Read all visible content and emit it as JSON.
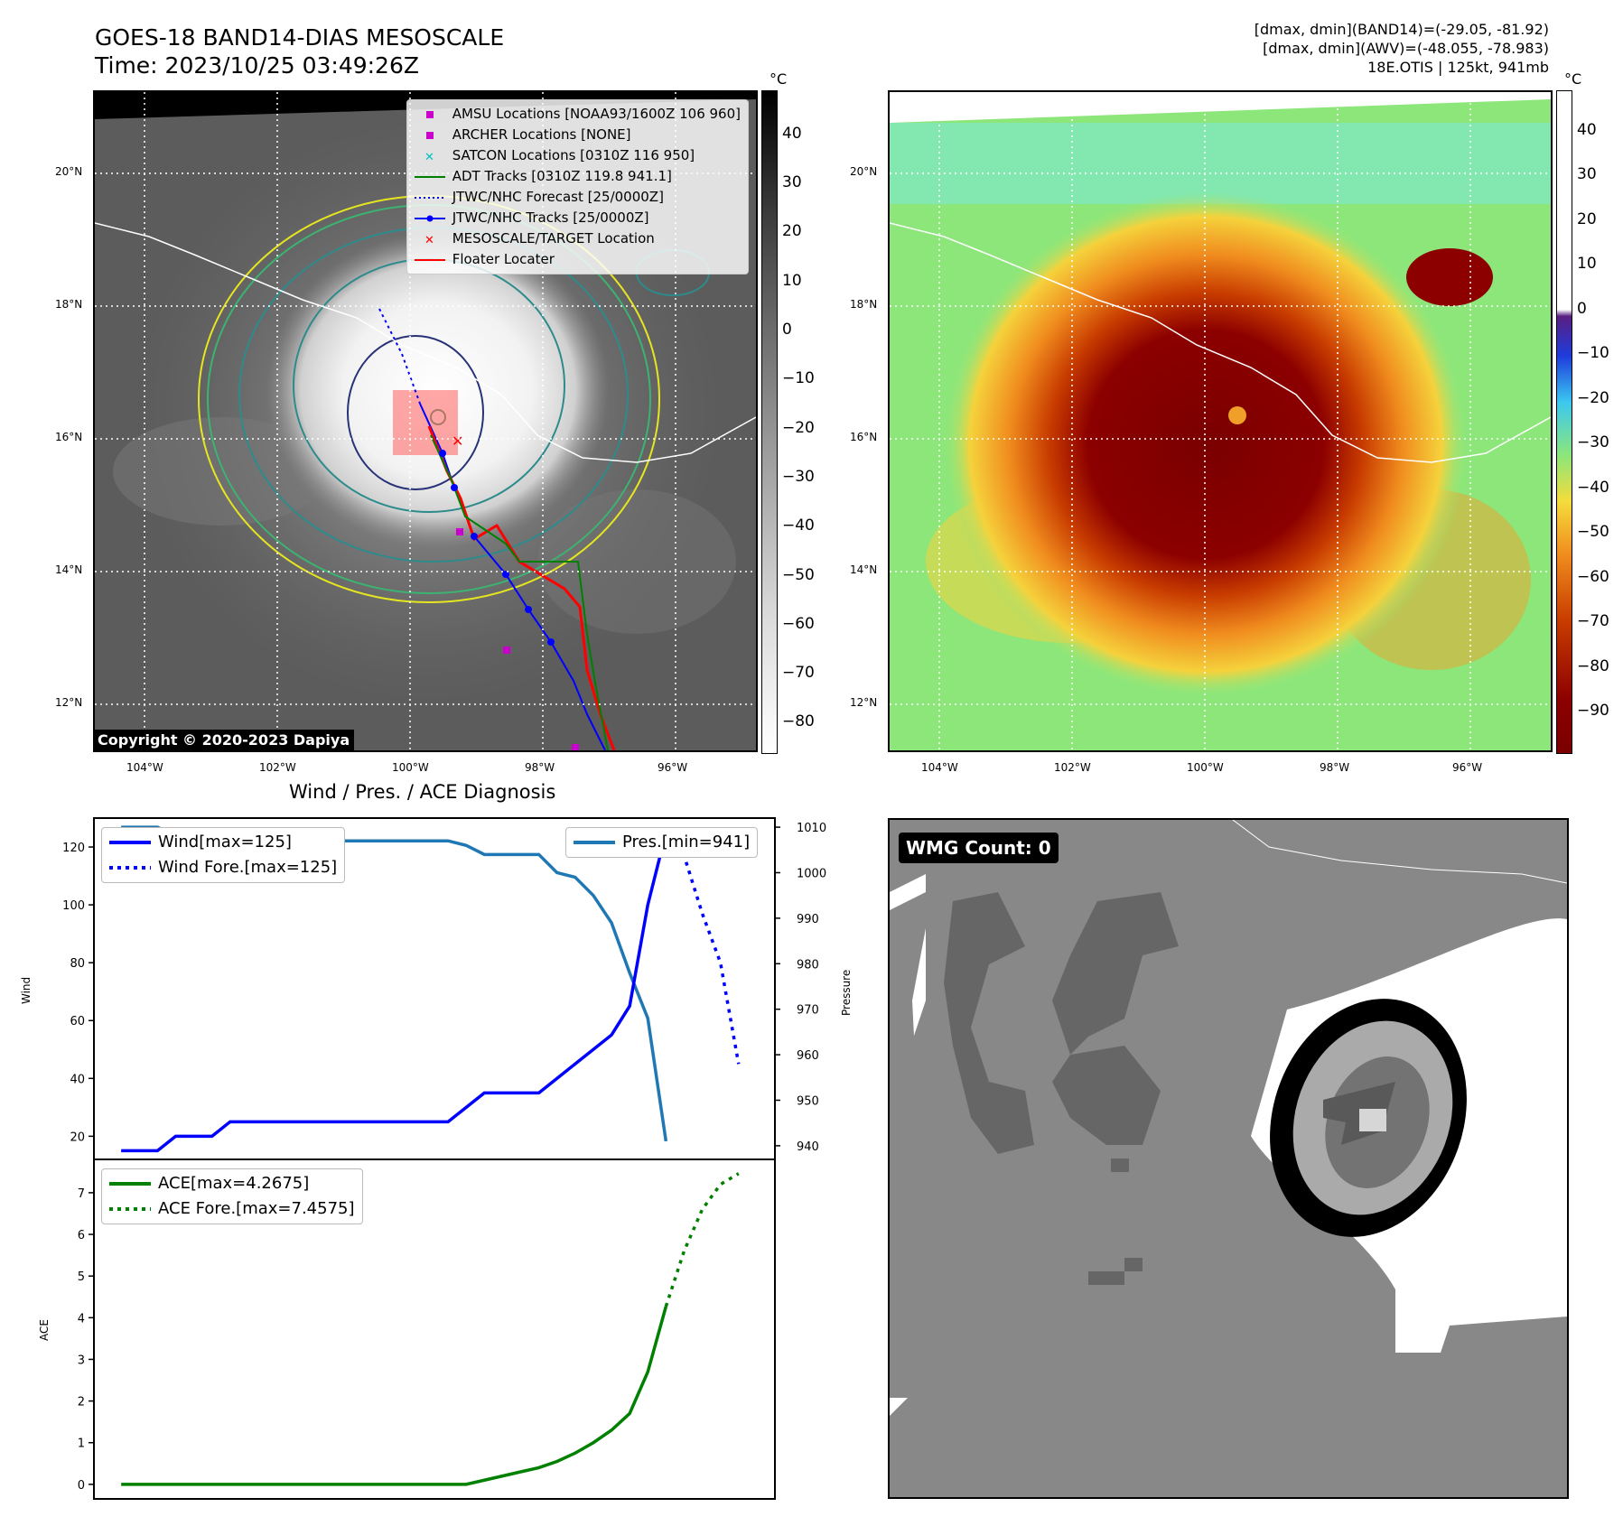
{
  "header": {
    "title_line1": "GOES-18 BAND14-DIAS MESOSCALE",
    "title_line2": "Time: 2023/10/25 03:49:26Z",
    "info_line1": "[dmax, dmin](BAND14)=(-29.05, -81.92)",
    "info_line2": "[dmax, dmin](AWV)=(-48.055, -78.983)",
    "info_line3": "18E.OTIS | 125kt, 941mb"
  },
  "map": {
    "lat_labels": [
      "20°N",
      "18°N",
      "16°N",
      "14°N",
      "12°N"
    ],
    "lon_labels": [
      "104°W",
      "102°W",
      "100°W",
      "98°W",
      "96°W"
    ],
    "copyright": "Copyright © 2020-2023 Dapiya",
    "legend": [
      {
        "label": "AMSU Locations [NOAA93/1600Z 106 960]",
        "symbol": "square",
        "color": "#cc00cc"
      },
      {
        "label": "ARCHER Locations [NONE]",
        "symbol": "square",
        "color": "#cc00cc"
      },
      {
        "label": "SATCON Locations [0310Z 116 950]",
        "symbol": "x",
        "color": "#00bfbf"
      },
      {
        "label": "ADT Tracks [0310Z 119.8 941.1]",
        "symbol": "line",
        "color": "#008000"
      },
      {
        "label": "JTWC/NHC Forecast [25/0000Z]",
        "symbol": "dotted",
        "color": "#0000ff"
      },
      {
        "label": "JTWC/NHC Tracks [25/0000Z]",
        "symbol": "line-dot",
        "color": "#0000ff"
      },
      {
        "label": "MESOSCALE/TARGET Location",
        "symbol": "x",
        "color": "#ff0000"
      },
      {
        "label": "Floater Locater",
        "symbol": "line",
        "color": "#ff0000"
      }
    ]
  },
  "colorbars": {
    "unit": "°C",
    "left_ticks": [
      "40",
      "30",
      "20",
      "10",
      "0",
      "−10",
      "−20",
      "−30",
      "−40",
      "−50",
      "−60",
      "−70",
      "−80"
    ],
    "right_ticks": [
      "40",
      "30",
      "20",
      "10",
      "0",
      "−10",
      "−20",
      "−30",
      "−40",
      "−50",
      "−60",
      "−70",
      "−80",
      "−90"
    ]
  },
  "diag": {
    "title": "Wind / Pres. / ACE Diagnosis",
    "wind_ylabel": "Wind",
    "pres_ylabel": "Pressure",
    "ace_ylabel": "ACE",
    "wind_legend": [
      "Wind[max=125]",
      "Wind Fore.[max=125]"
    ],
    "pres_legend": "Pres.[min=941]",
    "ace_legend": [
      "ACE[max=4.2675]",
      "ACE Fore.[max=7.4575]"
    ],
    "wind_ticks": [
      "120",
      "100",
      "80",
      "60",
      "40",
      "20"
    ],
    "pres_ticks": [
      "1010",
      "1000",
      "990",
      "980",
      "970",
      "960",
      "950",
      "940"
    ],
    "ace_ticks": [
      "7",
      "6",
      "5",
      "4",
      "3",
      "2",
      "1",
      "0"
    ],
    "colors": {
      "wind": "#0000ff",
      "pres": "#1f77b4",
      "ace": "#008000"
    }
  },
  "wmg": {
    "badge": "WMG Count: 0"
  },
  "chart_data": [
    {
      "type": "line",
      "title": "Wind / Pres. / ACE Diagnosis",
      "ylabel": "Wind",
      "ylim": [
        12,
        130
      ],
      "series": [
        {
          "name": "Wind[max=125]",
          "x": [
            0,
            2,
            3,
            5,
            6,
            8,
            10,
            12,
            14,
            16,
            18,
            19,
            20,
            21,
            23,
            25,
            27,
            28,
            29,
            30
          ],
          "values": [
            15,
            15,
            20,
            20,
            25,
            25,
            25,
            25,
            25,
            25,
            25,
            30,
            35,
            35,
            35,
            45,
            55,
            65,
            100,
            125
          ]
        },
        {
          "name": "Wind Fore.[max=125]",
          "x": [
            30,
            31,
            32,
            33,
            34
          ],
          "values": [
            125,
            117,
            97,
            80,
            45
          ]
        }
      ]
    },
    {
      "type": "line",
      "ylabel": "Pressure",
      "ylim": [
        937,
        1012
      ],
      "series": [
        {
          "name": "Pres.[min=941]",
          "x": [
            0,
            2,
            3,
            5,
            6,
            8,
            10,
            12,
            14,
            16,
            18,
            19,
            20,
            21,
            23,
            24,
            25,
            26,
            27,
            28,
            29,
            30
          ],
          "values": [
            1010,
            1010,
            1008,
            1008,
            1007,
            1007,
            1007,
            1007,
            1007,
            1007,
            1007,
            1006,
            1004,
            1004,
            1004,
            1000,
            999,
            995,
            989,
            978,
            968,
            941
          ]
        }
      ]
    },
    {
      "type": "line",
      "ylabel": "ACE",
      "ylim": [
        -0.35,
        7.8
      ],
      "series": [
        {
          "name": "ACE[max=4.2675]",
          "x": [
            0,
            5,
            10,
            15,
            19,
            20,
            21,
            22,
            23,
            24,
            25,
            26,
            27,
            28,
            29,
            30
          ],
          "values": [
            0,
            0,
            0,
            0,
            0,
            0.1,
            0.2,
            0.3,
            0.4,
            0.55,
            0.75,
            1.0,
            1.3,
            1.7,
            2.7,
            4.27
          ]
        },
        {
          "name": "ACE Fore.[max=7.4575]",
          "x": [
            30,
            31,
            32,
            33,
            34
          ],
          "values": [
            4.27,
            5.6,
            6.6,
            7.2,
            7.46
          ]
        }
      ]
    }
  ]
}
